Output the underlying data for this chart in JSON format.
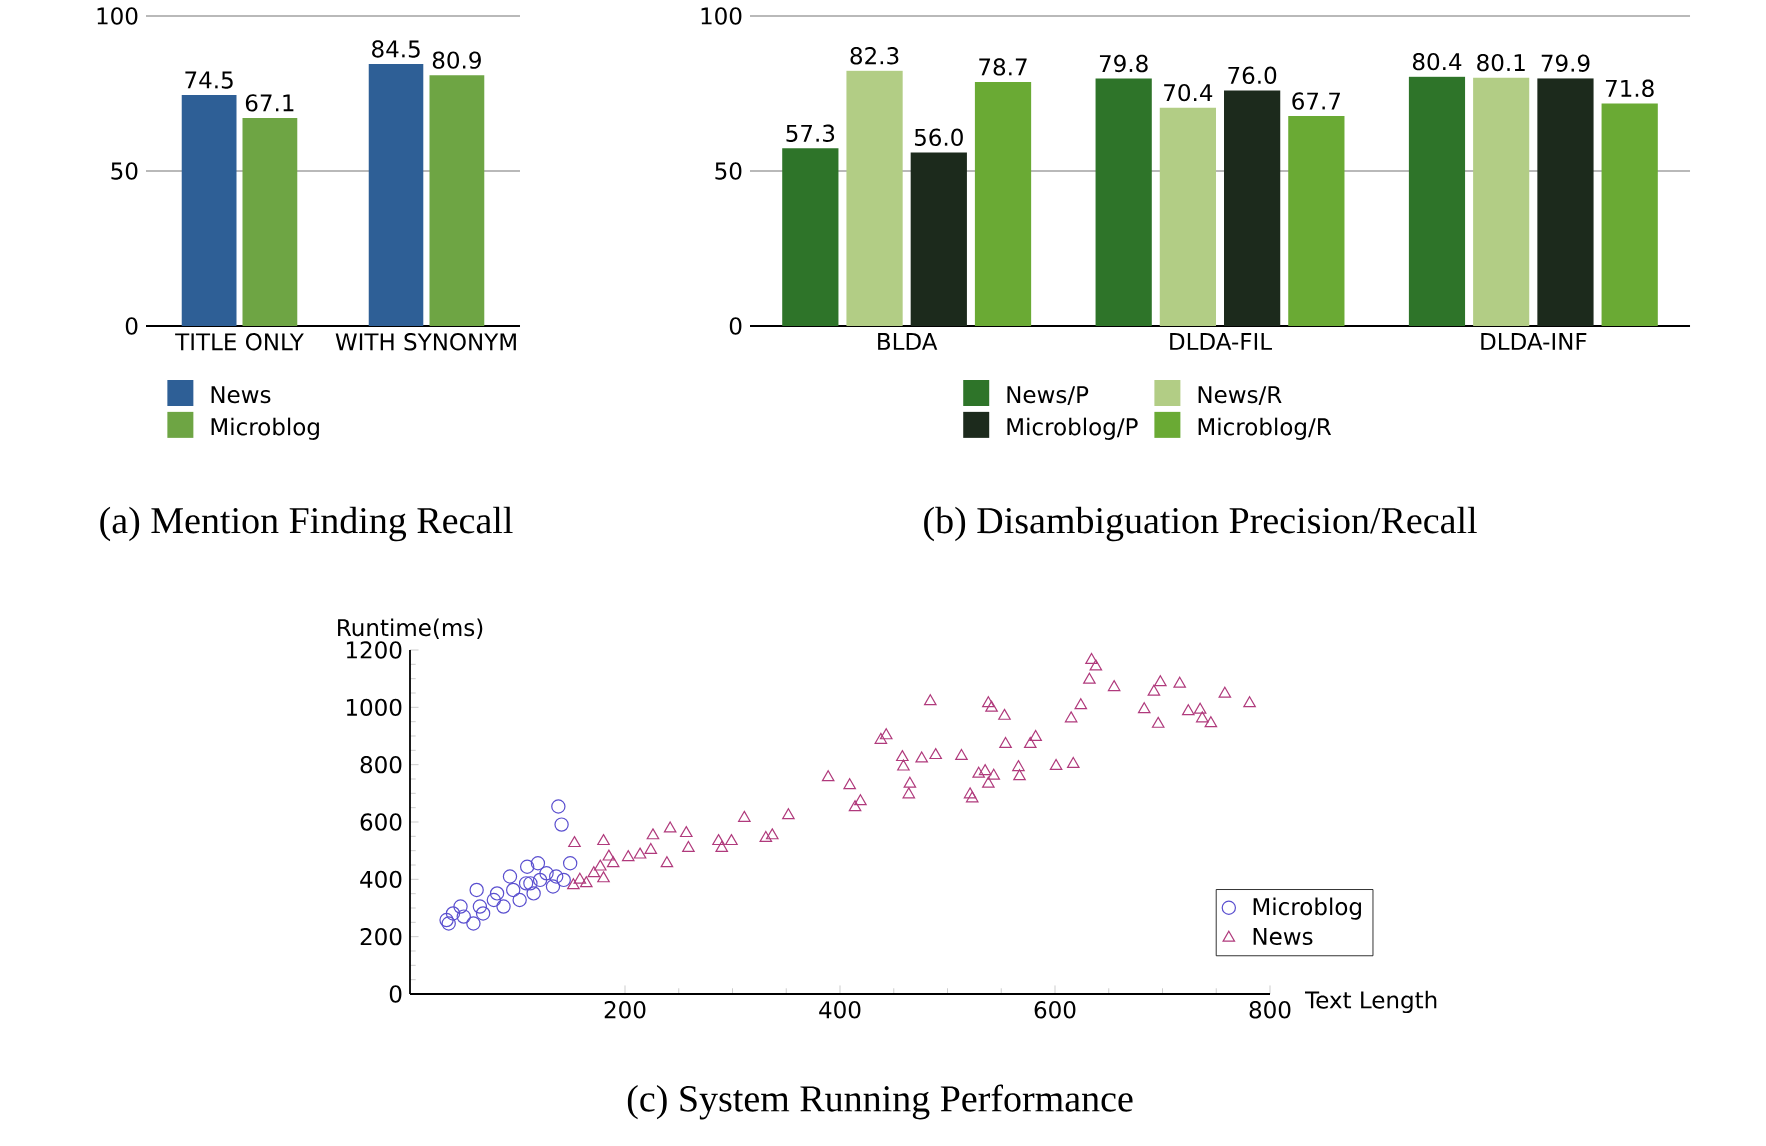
{
  "chart_data": [
    {
      "type": "bar",
      "categories": [
        "TITLE ONLY",
        "WITH SYNONYM"
      ],
      "series": [
        {
          "name": "News",
          "color": "#2e5f96",
          "values": [
            74.5,
            84.5
          ]
        },
        {
          "name": "Microblog",
          "color": "#6ea544",
          "values": [
            67.1,
            80.9
          ]
        }
      ],
      "ylim": [
        0,
        100
      ],
      "yticks": [
        0,
        50,
        100
      ],
      "grid": "y",
      "legend": "bottom",
      "data_labels": true,
      "annotations": [
        "(a) Mention Finding Recall"
      ]
    },
    {
      "type": "bar",
      "categories": [
        "BLDA",
        "DLDA-FIL",
        "DLDA-INF"
      ],
      "series": [
        {
          "name": "News/P",
          "color": "#2e7429",
          "values": [
            57.3,
            79.8,
            80.4
          ],
          "value_labels": [
            "57.3",
            "79.8",
            "80.4"
          ]
        },
        {
          "name": "News/R",
          "color": "#b2cd85",
          "values": [
            82.3,
            70.4,
            80.1
          ],
          "value_labels": [
            "82.3",
            "70.4",
            "80.1"
          ]
        },
        {
          "name": "Microblog/P",
          "color": "#1c2a1c",
          "values": [
            56.0,
            76.0,
            79.9
          ],
          "value_labels": [
            "56.0",
            "76.0",
            "79.9"
          ]
        },
        {
          "name": "Microblog/R",
          "color": "#6aaa34",
          "values": [
            78.7,
            67.7,
            71.8
          ],
          "value_labels": [
            "78.7",
            "67.7",
            "71.8"
          ]
        }
      ],
      "ylim": [
        0,
        100
      ],
      "yticks": [
        0,
        50,
        100
      ],
      "grid": "y",
      "legend": "bottom",
      "annotations": [
        "(b) Disambiguation Precision/Recall"
      ]
    },
    {
      "type": "scatter",
      "xlabel": "Text Length",
      "ylabel": "Runtime(ms)",
      "xlim": [
        0,
        800
      ],
      "xticks": [
        200,
        400,
        600,
        800
      ],
      "ylim": [
        0,
        1200
      ],
      "yticks": [
        0,
        200,
        400,
        600,
        800,
        1000,
        1200
      ],
      "grid": false,
      "legend": "bottom right",
      "series": [
        {
          "name": "Microblog",
          "color": "#5a4fcf",
          "marker": "circle",
          "x": [
            138,
            141,
            34,
            40,
            50,
            59,
            62,
            65,
            78,
            81,
            93,
            96,
            102,
            109,
            112,
            119,
            121,
            127,
            133,
            136,
            143,
            149,
            47,
            87,
            68,
            115,
            108,
            36
          ],
          "values": [
            654,
            591,
            258,
            281,
            270,
            246,
            363,
            305,
            328,
            351,
            410,
            363,
            328,
            444,
            386,
            456,
            398,
            421,
            375,
            410,
            398,
            456,
            305,
            305,
            281,
            351,
            386,
            246
          ]
        },
        {
          "name": "News",
          "color": "#b03a7c",
          "marker": "triangle",
          "x": [
            153,
            180,
            226,
            242,
            257,
            259,
            239,
            224,
            214,
            203,
            311,
            331,
            337,
            352,
            287,
            299,
            290,
            185,
            189,
            177,
            171,
            158,
            152,
            164,
            180,
            389,
            409,
            414,
            419,
            438,
            443,
            458,
            459,
            465,
            464,
            476,
            484,
            489,
            513,
            521,
            523,
            529,
            535,
            538,
            543,
            538,
            541,
            553,
            554,
            566,
            567,
            577,
            582,
            601,
            617,
            615,
            624,
            632,
            634,
            638,
            655,
            683,
            692,
            698,
            696,
            716,
            724,
            735,
            737,
            745,
            758,
            781
          ],
          "values": [
            526,
            533,
            553,
            577,
            561,
            509,
            456,
            502,
            486,
            477,
            614,
            544,
            553,
            623,
            533,
            533,
            509,
            479,
            456,
            444,
            421,
            398,
            379,
            386,
            403,
            756,
            728,
            651,
            672,
            886,
            902,
            826,
            793,
            733,
            696,
            821,
            1021,
            833,
            830,
            696,
            682,
            768,
            777,
            733,
            761,
            1014,
            998,
            970,
            872,
            791,
            759,
            872,
            896,
            795,
            802,
            961,
            1007,
            1096,
            1165,
            1142,
            1070,
            993,
            1054,
            1087,
            942,
            1082,
            986,
            991,
            961,
            944,
            1047,
            1014
          ]
        }
      ],
      "annotations": [
        "(c) System Running Performance"
      ]
    }
  ]
}
